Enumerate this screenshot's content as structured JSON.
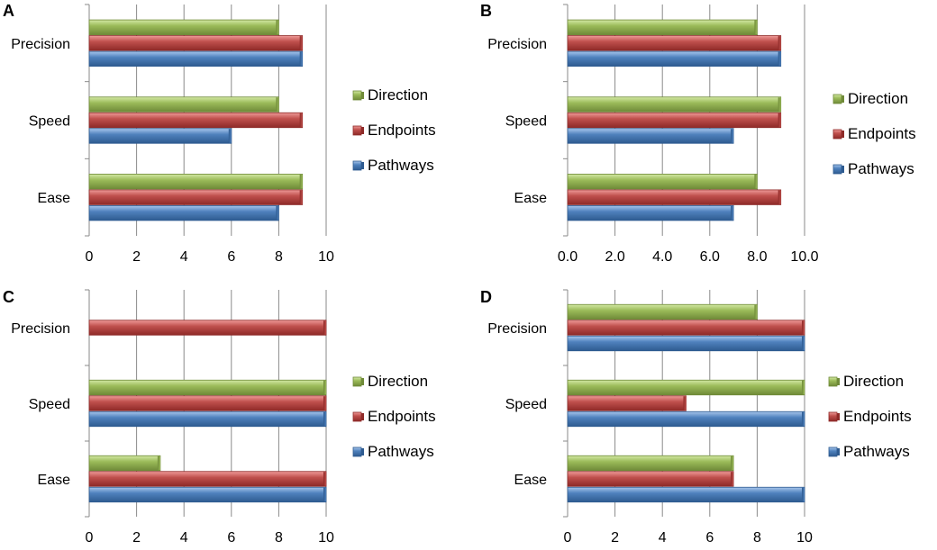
{
  "series_colors": {
    "Direction": {
      "base": "#9bbb59",
      "light": "#d3e8a4",
      "dark": "#6f8a38",
      "stroke": "#6f8a38"
    },
    "Endpoints": {
      "base": "#c0504d",
      "light": "#ee9a98",
      "dark": "#8e2a28",
      "stroke": "#8e2a28"
    },
    "Pathways": {
      "base": "#4f81bd",
      "light": "#a8c6ec",
      "dark": "#2e5b90",
      "stroke": "#2e5b90"
    }
  },
  "legend_entries": [
    "Direction",
    "Endpoints",
    "Pathways"
  ],
  "chart_data": [
    {
      "panel": "A",
      "type": "bar",
      "orientation": "horizontal",
      "categories": [
        "Precision",
        "Speed",
        "Ease"
      ],
      "series": [
        {
          "name": "Direction",
          "values": [
            8,
            8,
            9
          ]
        },
        {
          "name": "Endpoints",
          "values": [
            9,
            9,
            9
          ]
        },
        {
          "name": "Pathways",
          "values": [
            9,
            6,
            8
          ]
        }
      ],
      "xlim": [
        0,
        10
      ],
      "ticks": [
        "0",
        "2",
        "4",
        "6",
        "8",
        "10"
      ],
      "legend": [
        "Direction",
        "Endpoints",
        "Pathways"
      ],
      "legend_position": "right",
      "grid": true
    },
    {
      "panel": "B",
      "type": "bar",
      "orientation": "horizontal",
      "categories": [
        "Precision",
        "Speed",
        "Ease"
      ],
      "series": [
        {
          "name": "Direction",
          "values": [
            8,
            9,
            8
          ]
        },
        {
          "name": "Endpoints",
          "values": [
            9,
            9,
            9
          ]
        },
        {
          "name": "Pathways",
          "values": [
            9,
            7,
            7
          ]
        }
      ],
      "xlim": [
        0,
        10
      ],
      "ticks": [
        "0.0",
        "2.0",
        "4.0",
        "6.0",
        "8.0",
        "10.0"
      ],
      "legend": [
        "Direction",
        "Endpoints",
        "Pathways"
      ],
      "legend_position": "right",
      "grid": true
    },
    {
      "panel": "C",
      "type": "bar",
      "orientation": "horizontal",
      "categories": [
        "Precision",
        "Speed",
        "Ease"
      ],
      "series": [
        {
          "name": "Direction",
          "values": [
            null,
            10,
            3
          ]
        },
        {
          "name": "Endpoints",
          "values": [
            10,
            10,
            10
          ]
        },
        {
          "name": "Pathways",
          "values": [
            null,
            10,
            10
          ]
        }
      ],
      "xlim": [
        0,
        10
      ],
      "ticks": [
        "0",
        "2",
        "4",
        "6",
        "8",
        "10"
      ],
      "legend": [
        "Direction",
        "Endpoints",
        "Pathways"
      ],
      "legend_position": "right",
      "grid": true
    },
    {
      "panel": "D",
      "type": "bar",
      "orientation": "horizontal",
      "categories": [
        "Precision",
        "Speed",
        "Ease"
      ],
      "series": [
        {
          "name": "Direction",
          "values": [
            8,
            10,
            7
          ]
        },
        {
          "name": "Endpoints",
          "values": [
            10,
            5,
            7
          ]
        },
        {
          "name": "Pathways",
          "values": [
            10,
            10,
            10
          ]
        }
      ],
      "xlim": [
        0,
        10
      ],
      "ticks": [
        "0",
        "2",
        "4",
        "6",
        "8",
        "10"
      ],
      "legend": [
        "Direction",
        "Endpoints",
        "Pathways"
      ],
      "legend_position": "right",
      "grid": true
    }
  ]
}
